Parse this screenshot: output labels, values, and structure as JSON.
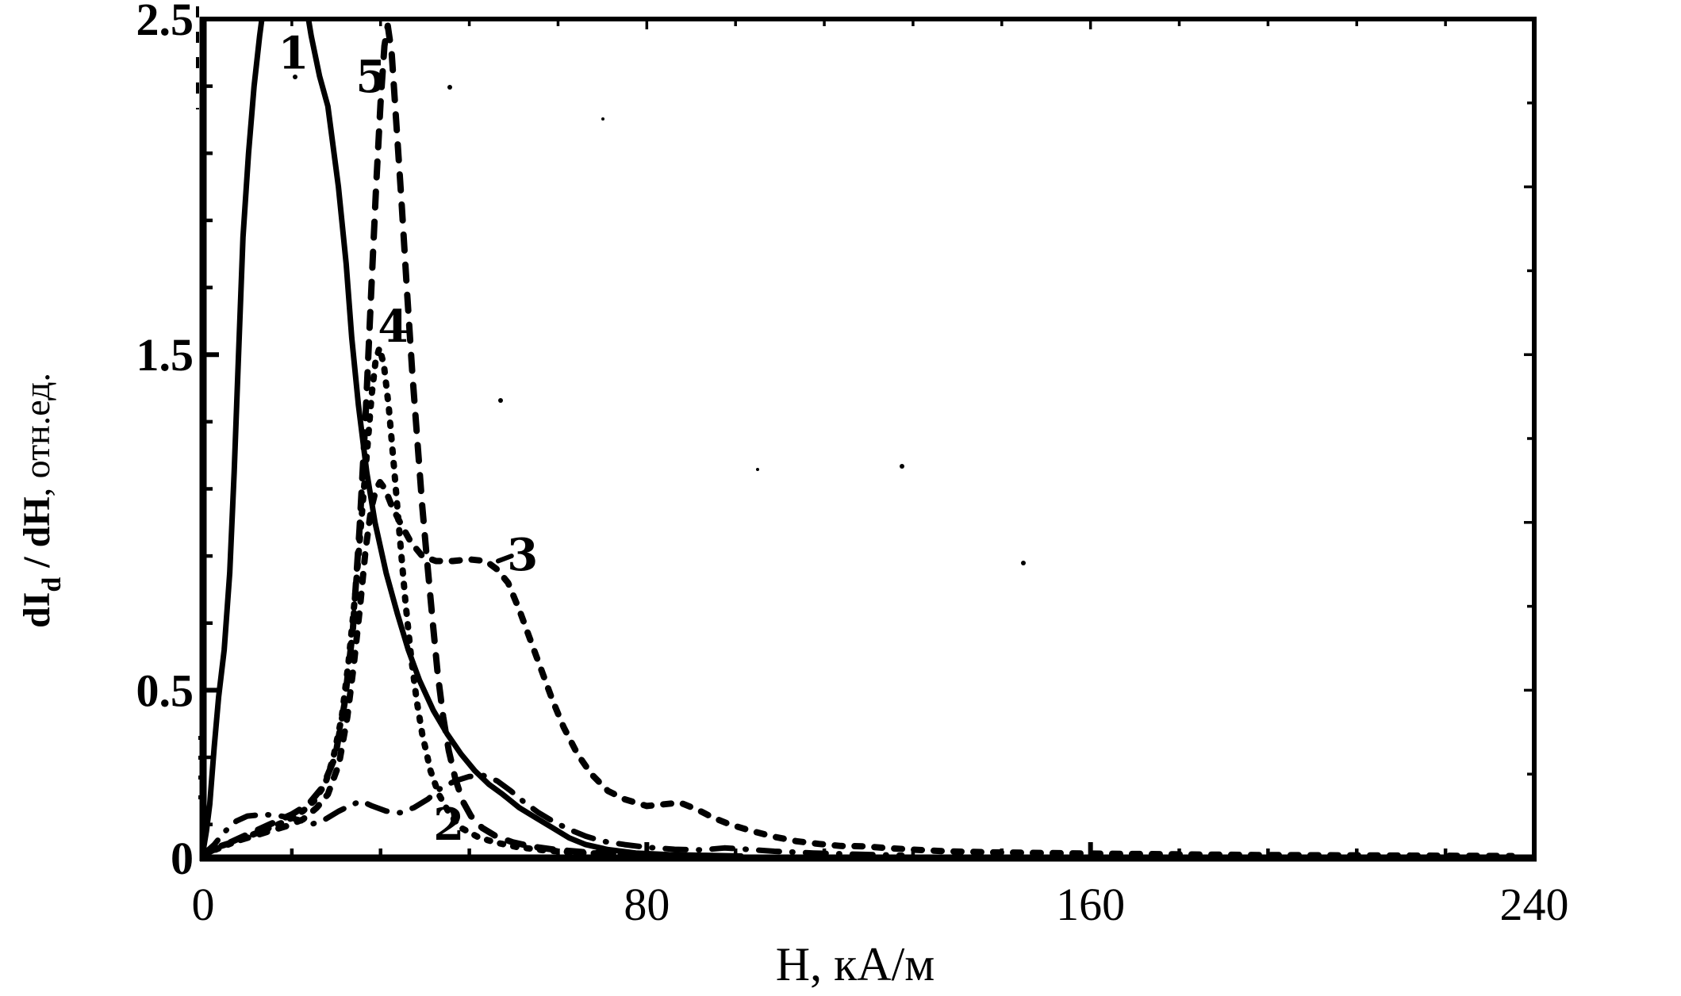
{
  "chart_data": {
    "type": "line",
    "title": "",
    "xlabel": "H, кА/м",
    "ylabel": "dI_d / dH, отн.ед.",
    "ylabel_parts": {
      "bold_main": "dI",
      "subscript": "d",
      "bold_rest": " / dH",
      "normal_rest": ", отн.ед."
    },
    "xlim": [
      0,
      240
    ],
    "ylim": [
      0,
      2.5
    ],
    "x_major_ticks": [
      0,
      80,
      160,
      240
    ],
    "x_tick_labels": [
      "0",
      "80",
      "160",
      "240"
    ],
    "x_minor_step": 16,
    "y_major_ticks": [
      0,
      0.5,
      1.5,
      2.5
    ],
    "y_tick_labels": [
      "0",
      "0.5",
      "1.5",
      "2.5"
    ],
    "y_minor_step": 0.2,
    "grid": false,
    "legend_position": "none",
    "background": "#ffffff",
    "ink_color": "#000000",
    "note": "scanned black-and-white derivative magnetization curves; curve 1 is clipped at top (exceeds 2.5)",
    "series": [
      {
        "name": "curve-3",
        "label": "3",
        "line_style": "medium-dash",
        "label_pos": [
          57.6,
          0.905
        ],
        "pointer": [
          [
            53.2,
            0.885
          ],
          [
            55.6,
            0.9
          ]
        ],
        "points": [
          [
            0,
            0.015
          ],
          [
            3,
            0.035
          ],
          [
            6,
            0.05
          ],
          [
            9,
            0.065
          ],
          [
            12,
            0.08
          ],
          [
            15,
            0.095
          ],
          [
            18,
            0.115
          ],
          [
            20.5,
            0.15
          ],
          [
            22.5,
            0.19
          ],
          [
            24.5,
            0.28
          ],
          [
            26,
            0.42
          ],
          [
            27.2,
            0.58
          ],
          [
            28.3,
            0.75
          ],
          [
            29.3,
            0.92
          ],
          [
            30.3,
            1.04
          ],
          [
            31.2,
            1.1
          ],
          [
            31.9,
            1.12
          ],
          [
            32.8,
            1.1
          ],
          [
            34,
            1.05
          ],
          [
            35.5,
            1.0
          ],
          [
            37.5,
            0.94
          ],
          [
            39.5,
            0.9
          ],
          [
            42,
            0.885
          ],
          [
            45,
            0.885
          ],
          [
            48,
            0.89
          ],
          [
            51,
            0.885
          ],
          [
            53,
            0.86
          ],
          [
            55,
            0.82
          ],
          [
            57,
            0.74
          ],
          [
            59,
            0.65
          ],
          [
            61,
            0.56
          ],
          [
            63,
            0.47
          ],
          [
            65,
            0.39
          ],
          [
            67.5,
            0.31
          ],
          [
            70,
            0.25
          ],
          [
            73,
            0.2
          ],
          [
            76,
            0.175
          ],
          [
            80,
            0.155
          ],
          [
            83,
            0.16
          ],
          [
            86,
            0.165
          ],
          [
            89,
            0.145
          ],
          [
            92,
            0.12
          ],
          [
            95,
            0.1
          ],
          [
            99,
            0.08
          ],
          [
            103,
            0.063
          ],
          [
            107,
            0.05
          ],
          [
            111,
            0.042
          ],
          [
            115,
            0.036
          ],
          [
            119,
            0.035
          ],
          [
            123,
            0.03
          ],
          [
            128,
            0.025
          ],
          [
            134,
            0.02
          ],
          [
            142,
            0.017
          ],
          [
            152,
            0.015
          ],
          [
            162,
            0.013
          ],
          [
            175,
            0.011
          ],
          [
            190,
            0.009
          ],
          [
            205,
            0.008
          ],
          [
            220,
            0.007
          ],
          [
            236,
            0.006
          ]
        ]
      },
      {
        "name": "curve-5",
        "label": "5",
        "line_style": "long-dash",
        "label_pos": [
          30.3,
          2.33
        ],
        "pointer": null,
        "points": [
          [
            0,
            0.01
          ],
          [
            4,
            0.04
          ],
          [
            8,
            0.07
          ],
          [
            12,
            0.1
          ],
          [
            16,
            0.13
          ],
          [
            19,
            0.16
          ],
          [
            21.5,
            0.21
          ],
          [
            23.8,
            0.3
          ],
          [
            25.5,
            0.46
          ],
          [
            27,
            0.68
          ],
          [
            28.2,
            0.98
          ],
          [
            29.3,
            1.32
          ],
          [
            30.3,
            1.68
          ],
          [
            31.2,
            2.0
          ],
          [
            32,
            2.25
          ],
          [
            32.7,
            2.42
          ],
          [
            33.3,
            2.48
          ],
          [
            34,
            2.4
          ],
          [
            34.8,
            2.2
          ],
          [
            35.8,
            1.95
          ],
          [
            36.8,
            1.68
          ],
          [
            37.7,
            1.45
          ],
          [
            38.6,
            1.25
          ],
          [
            39.5,
            1.05
          ],
          [
            40.3,
            0.9
          ],
          [
            41.3,
            0.72
          ],
          [
            42.3,
            0.55
          ],
          [
            43.3,
            0.42
          ],
          [
            44.3,
            0.32
          ],
          [
            45.5,
            0.235
          ],
          [
            46.8,
            0.17
          ],
          [
            48.3,
            0.125
          ],
          [
            50.3,
            0.09
          ],
          [
            52.8,
            0.065
          ],
          [
            55.8,
            0.047
          ],
          [
            59.3,
            0.034
          ],
          [
            63.3,
            0.025
          ],
          [
            68.3,
            0.018
          ],
          [
            74.3,
            0.012
          ],
          [
            80.5,
            0.009
          ],
          [
            88,
            0.006
          ]
        ]
      },
      {
        "name": "curve-4",
        "label": "4",
        "line_style": "short-dash",
        "label_pos": [
          34.3,
          1.585
        ],
        "pointer": null,
        "points": [
          [
            0,
            0.01
          ],
          [
            3,
            0.03
          ],
          [
            6,
            0.05
          ],
          [
            9,
            0.07
          ],
          [
            12,
            0.09
          ],
          [
            15,
            0.11
          ],
          [
            18,
            0.14
          ],
          [
            20,
            0.17
          ],
          [
            22,
            0.22
          ],
          [
            23.5,
            0.3
          ],
          [
            25,
            0.42
          ],
          [
            26.2,
            0.58
          ],
          [
            27.4,
            0.78
          ],
          [
            28.5,
            1.0
          ],
          [
            29.5,
            1.2
          ],
          [
            30.4,
            1.38
          ],
          [
            31.1,
            1.48
          ],
          [
            31.8,
            1.52
          ],
          [
            32.6,
            1.47
          ],
          [
            33.5,
            1.34
          ],
          [
            34.5,
            1.15
          ],
          [
            35.5,
            0.95
          ],
          [
            36.5,
            0.76
          ],
          [
            37.5,
            0.6
          ],
          [
            38.5,
            0.47
          ],
          [
            39.5,
            0.37
          ],
          [
            41,
            0.26
          ],
          [
            42.5,
            0.19
          ],
          [
            44.5,
            0.13
          ],
          [
            46.5,
            0.09
          ],
          [
            49.5,
            0.063
          ],
          [
            52.5,
            0.047
          ],
          [
            56.5,
            0.033
          ],
          [
            61.5,
            0.023
          ],
          [
            67.5,
            0.016
          ],
          [
            74.5,
            0.011
          ],
          [
            82,
            0.008
          ],
          [
            90,
            0.006
          ]
        ]
      },
      {
        "name": "curve-2",
        "label": "2",
        "line_style": "dash-dot",
        "label_pos": [
          44.3,
          0.102
        ],
        "pointer": null,
        "points": [
          [
            0,
            0.01
          ],
          [
            2,
            0.04
          ],
          [
            4,
            0.08
          ],
          [
            6,
            0.11
          ],
          [
            8,
            0.125
          ],
          [
            11,
            0.13
          ],
          [
            14,
            0.125
          ],
          [
            17,
            0.115
          ],
          [
            19.5,
            0.1
          ],
          [
            22,
            0.115
          ],
          [
            24.5,
            0.14
          ],
          [
            27,
            0.16
          ],
          [
            28.5,
            0.17
          ],
          [
            30.5,
            0.155
          ],
          [
            33,
            0.14
          ],
          [
            35.5,
            0.135
          ],
          [
            38,
            0.15
          ],
          [
            40.5,
            0.175
          ],
          [
            43,
            0.21
          ],
          [
            45.5,
            0.23
          ],
          [
            48,
            0.243
          ],
          [
            50.5,
            0.246
          ],
          [
            53,
            0.23
          ],
          [
            55.5,
            0.2
          ],
          [
            58,
            0.165
          ],
          [
            60.5,
            0.135
          ],
          [
            63,
            0.11
          ],
          [
            66,
            0.085
          ],
          [
            69,
            0.065
          ],
          [
            72,
            0.05
          ],
          [
            76,
            0.04
          ],
          [
            80,
            0.032
          ],
          [
            85,
            0.026
          ],
          [
            90,
            0.024
          ],
          [
            94,
            0.03
          ],
          [
            98,
            0.026
          ],
          [
            103,
            0.02
          ],
          [
            110,
            0.015
          ],
          [
            118,
            0.011
          ],
          [
            126,
            0.008
          ]
        ]
      },
      {
        "name": "curve-1",
        "label": "1",
        "line_style": "solid",
        "label_pos": [
          16.3,
          2.4
        ],
        "pointer": null,
        "points": [
          [
            0,
            0.02
          ],
          [
            0.6,
            0.08
          ],
          [
            1.2,
            0.16
          ],
          [
            2,
            0.33
          ],
          [
            2.8,
            0.48
          ],
          [
            3.8,
            0.62
          ],
          [
            4.8,
            0.85
          ],
          [
            5.6,
            1.15
          ],
          [
            6.4,
            1.5
          ],
          [
            7.2,
            1.85
          ],
          [
            8.2,
            2.1
          ],
          [
            9.2,
            2.3
          ],
          [
            10.2,
            2.45
          ],
          [
            11,
            2.55
          ],
          [
            12,
            2.63
          ],
          [
            17,
            2.63
          ],
          [
            18.5,
            2.55
          ],
          [
            19.5,
            2.45
          ],
          [
            21,
            2.33
          ],
          [
            22.5,
            2.24
          ],
          [
            24.4,
            2.0
          ],
          [
            25.8,
            1.77
          ],
          [
            26.8,
            1.55
          ],
          [
            28,
            1.35
          ],
          [
            29.5,
            1.15
          ],
          [
            31,
            1.0
          ],
          [
            33,
            0.85
          ],
          [
            35,
            0.73
          ],
          [
            37,
            0.62
          ],
          [
            39,
            0.53
          ],
          [
            41.5,
            0.44
          ],
          [
            44,
            0.37
          ],
          [
            46.5,
            0.31
          ],
          [
            49,
            0.26
          ],
          [
            51.5,
            0.22
          ],
          [
            54,
            0.19
          ],
          [
            57,
            0.15
          ],
          [
            60,
            0.12
          ],
          [
            63,
            0.09
          ],
          [
            66,
            0.06
          ],
          [
            69,
            0.04
          ],
          [
            73,
            0.025
          ],
          [
            78,
            0.015
          ],
          [
            84,
            0.01
          ],
          [
            90,
            0.008
          ],
          [
            97,
            0.006
          ]
        ]
      }
    ]
  }
}
